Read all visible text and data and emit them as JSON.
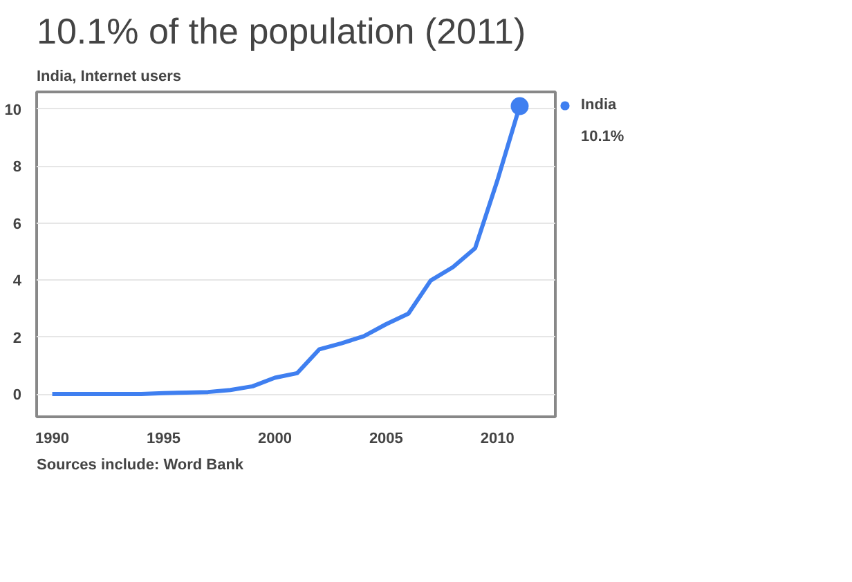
{
  "chart_data": {
    "type": "line",
    "title": "10.1% of the population (2011)",
    "subtitle": "India, Internet users",
    "x": [
      1990,
      1991,
      1992,
      1993,
      1994,
      1995,
      1996,
      1997,
      1998,
      1999,
      2000,
      2001,
      2002,
      2003,
      2004,
      2005,
      2006,
      2007,
      2008,
      2009,
      2010,
      2011
    ],
    "series": [
      {
        "name": "India",
        "color": "#3f7ff0",
        "values": [
          0,
          0,
          0,
          0,
          0,
          0.03,
          0.05,
          0.07,
          0.14,
          0.27,
          0.57,
          0.73,
          1.57,
          1.78,
          2.03,
          2.45,
          2.82,
          3.98,
          4.45,
          5.12,
          7.5,
          10.1
        ]
      }
    ],
    "xlim": [
      1989.3,
      2012.6
    ],
    "ylim": [
      -0.8,
      10.6
    ],
    "xticks": [
      1990,
      1995,
      2000,
      2005,
      2010
    ],
    "yticks": [
      0,
      2,
      4,
      6,
      8,
      10
    ],
    "grid": "y",
    "legend": "right",
    "marker": "none",
    "line_style": "solid",
    "annotations": [
      {
        "text": "10.1%"
      },
      "Sources include: Word Bank"
    ]
  }
}
